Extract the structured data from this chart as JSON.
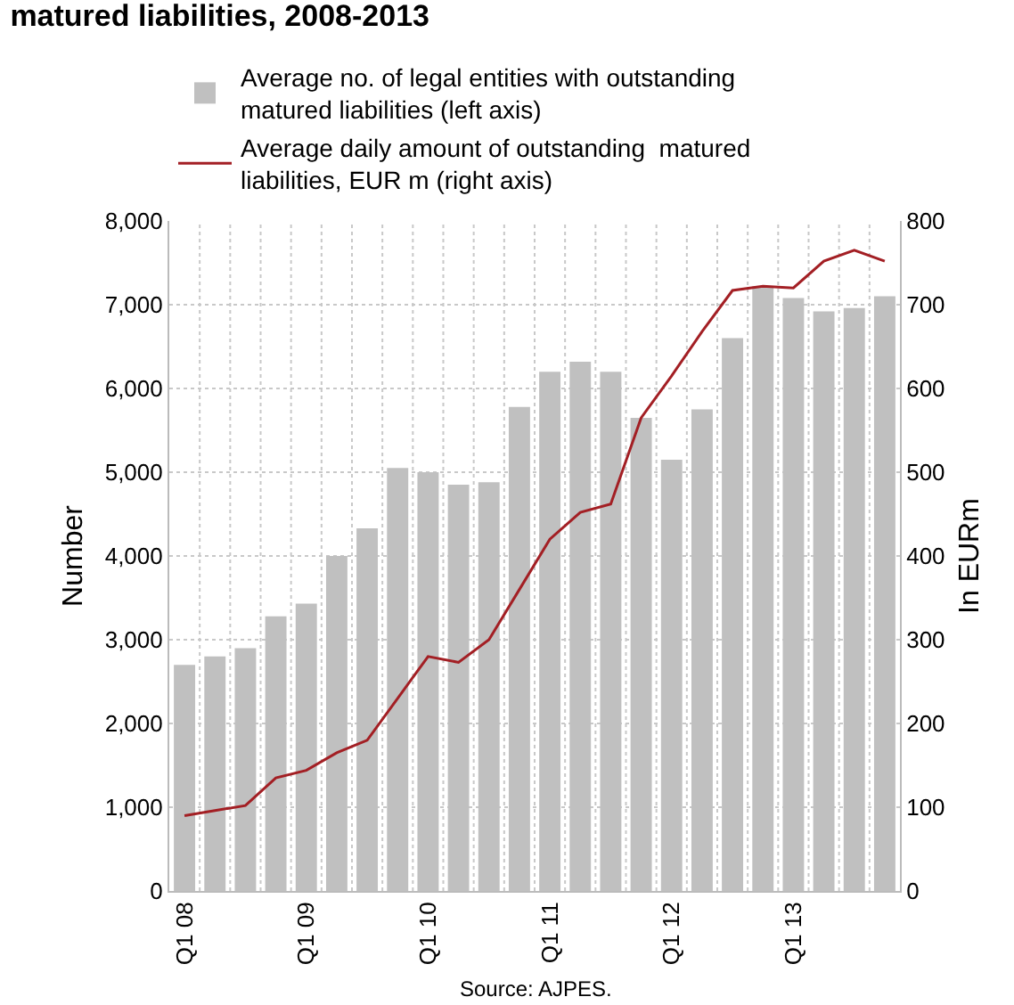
{
  "chart_data": {
    "type": "bar",
    "title": "matured liabilities, 2008-2013",
    "ylabel": "Number",
    "y2label": "In EURm",
    "categories": [
      "Q1 08",
      null,
      null,
      null,
      "Q1 09",
      null,
      null,
      null,
      "Q1 10",
      null,
      null,
      null,
      "Q1 11",
      null,
      null,
      null,
      "Q1 12",
      null,
      null,
      null,
      "Q1 13",
      null,
      null,
      null
    ],
    "series": [
      {
        "name": "Average no. of legal entities with outstanding matured liabilities (left axis)",
        "color": "#c0c0c0",
        "values": [
          2700,
          2800,
          2900,
          3280,
          3430,
          4000,
          4330,
          5050,
          5000,
          4850,
          4880,
          5780,
          6200,
          6320,
          6200,
          5650,
          5150,
          5750,
          6600,
          7220,
          7080,
          6920,
          6960,
          7100
        ]
      },
      {
        "name": "Average daily amount of outstanding  matured liabilities, EUR m (right axis)",
        "type": "line",
        "axis": "y2",
        "color": "#a31f24",
        "values": [
          90,
          96,
          102,
          135,
          144,
          165,
          180,
          230,
          280,
          273,
          300,
          360,
          420,
          452,
          462,
          565,
          615,
          668,
          717,
          722,
          720,
          752,
          765,
          752
        ]
      }
    ],
    "ylim": [
      0,
      8000
    ],
    "yticks": [
      0,
      {
        "value": 1000,
        "label": "1,000"
      },
      {
        "value": 2000,
        "label": "2,000"
      },
      {
        "value": 3000,
        "label": "3,000"
      },
      {
        "value": 4000,
        "label": "4,000"
      },
      {
        "value": 5000,
        "label": "5,000"
      },
      {
        "value": 6000,
        "label": "6,000"
      },
      {
        "value": 7000,
        "label": "7,000"
      },
      {
        "value": 8000,
        "label": "8,000"
      }
    ],
    "y2lim": [
      0,
      800
    ],
    "y2ticks": [
      0,
      100,
      200,
      300,
      400,
      500,
      600,
      700,
      800
    ],
    "grid": true,
    "legend": "top",
    "marker": "none",
    "line_style": "solid",
    "annotations": [
      "Source: AJPES."
    ]
  }
}
